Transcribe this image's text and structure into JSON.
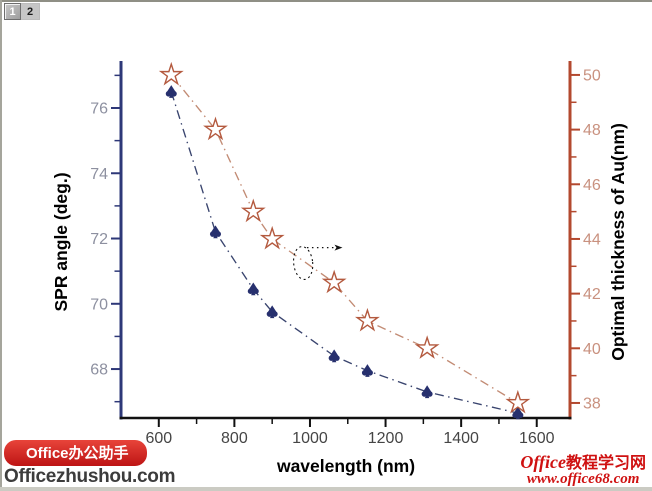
{
  "window": {
    "tabs": [
      {
        "label": "1",
        "active": true
      },
      {
        "label": "2",
        "active": false
      }
    ]
  },
  "watermarks": {
    "left": {
      "badge": "Office办公助手",
      "site": "Officezhushou.com"
    },
    "right": {
      "title_latin": "Office",
      "title_cjk": "教程学习网",
      "site": "www.office68.com"
    }
  },
  "chart_data": {
    "type": "line",
    "x": [
      633,
      750,
      850,
      900,
      1064,
      1152,
      1310,
      1550
    ],
    "series": [
      {
        "name": "SPR angle",
        "axis": "left",
        "values": [
          76.5,
          72.2,
          70.45,
          69.75,
          68.4,
          67.95,
          67.3,
          66.65
        ],
        "marker": "spade",
        "marker_color": "#27306e",
        "line_color": "#39446e"
      },
      {
        "name": "Optimal thickness of Au",
        "axis": "right",
        "values": [
          50,
          48,
          45,
          44,
          42.4,
          41,
          40,
          38
        ],
        "marker": "open-star",
        "marker_color": "#b45a3f",
        "line_color": "#c28b74"
      }
    ],
    "xlabel": "wavelength (nm)",
    "ylabel_left": "SPR angle (deg.)",
    "ylabel_right": "Optimal thickness of Au(nm)",
    "xlim": [
      500,
      1688
    ],
    "ylim_left": [
      66.5,
      77.44
    ],
    "ylim_right": [
      37.45,
      50.51
    ],
    "x_ticks_major": [
      600,
      800,
      1000,
      1200,
      1400,
      1600
    ],
    "x_ticks_minor": [
      700,
      900,
      1100,
      1300,
      1500
    ],
    "y_left_ticks_major": [
      68,
      70,
      72,
      74,
      76
    ],
    "y_left_ticks_minor": [
      67,
      69,
      71,
      73,
      75,
      77
    ],
    "y_right_ticks_major": [
      38,
      40,
      42,
      44,
      46,
      48,
      50
    ],
    "y_right_ticks_minor": [
      39,
      41,
      43,
      45,
      47,
      49
    ],
    "colors": {
      "left_axis": "#2e3878",
      "right_axis": "#b3492f",
      "x_axis": "#111111",
      "left_tick_label": "#8d90a0",
      "right_tick_label": "#c9917f",
      "x_tick_label": "#454545",
      "axis_title": "#000000"
    },
    "annotation": {
      "ellipse": {
        "x": 982,
        "y": 71.25,
        "rx": 27,
        "ry": 0.52
      },
      "arrow": {
        "x1": 992,
        "x2": 1086,
        "y": 71.72
      }
    }
  }
}
